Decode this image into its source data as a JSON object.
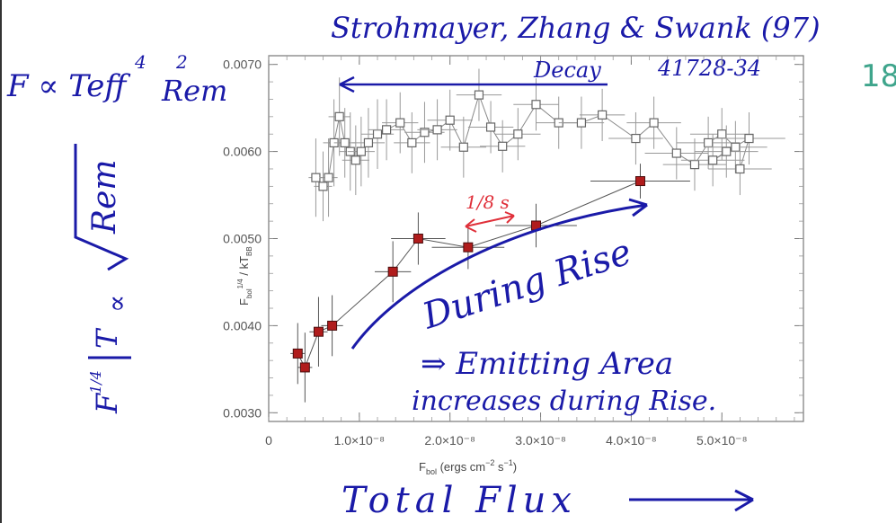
{
  "chart_data": {
    "type": "scatter",
    "xlabel": "F_bol (ergs cm^-2 s^-1)",
    "ylabel": "F_bol^1/4 / kT_BB",
    "xlim": [
      0,
      5.9e-08
    ],
    "ylim": [
      0.0029,
      0.0071
    ],
    "x_tick_labels": [
      "0",
      "1.0×10⁻⁸",
      "2.0×10⁻⁸",
      "3.0×10⁻⁸",
      "4.0×10⁻⁸",
      "5.0×10⁻⁸"
    ],
    "y_tick_labels": [
      "0.0030",
      "0.0040",
      "0.0050",
      "0.0060",
      "0.0070"
    ],
    "series": [
      {
        "name": "Decay",
        "marker": "open-square",
        "color": "#666666",
        "points": [
          {
            "x": 5.2e-09,
            "y": 0.0057,
            "xerr": 8e-10,
            "yerr": 0.00045
          },
          {
            "x": 6e-09,
            "y": 0.0056,
            "xerr": 1e-09,
            "yerr": 0.0004
          },
          {
            "x": 6.6e-09,
            "y": 0.0057,
            "xerr": 1e-09,
            "yerr": 0.00045
          },
          {
            "x": 7.2e-09,
            "y": 0.0061,
            "xerr": 1.2e-09,
            "yerr": 0.0005
          },
          {
            "x": 7.8e-09,
            "y": 0.0064,
            "xerr": 1.2e-09,
            "yerr": 0.00045
          },
          {
            "x": 8.4e-09,
            "y": 0.0061,
            "xerr": 1.2e-09,
            "yerr": 0.0004
          },
          {
            "x": 9e-09,
            "y": 0.006,
            "xerr": 1.2e-09,
            "yerr": 0.00045
          },
          {
            "x": 9.6e-09,
            "y": 0.0059,
            "xerr": 1.5e-09,
            "yerr": 0.0004
          },
          {
            "x": 1.02e-08,
            "y": 0.006,
            "xerr": 1.5e-09,
            "yerr": 0.0004
          },
          {
            "x": 1.1e-08,
            "y": 0.0061,
            "xerr": 1.8e-09,
            "yerr": 0.0004
          },
          {
            "x": 1.2e-08,
            "y": 0.0062,
            "xerr": 1.8e-09,
            "yerr": 0.0004
          },
          {
            "x": 1.3e-08,
            "y": 0.00625,
            "xerr": 2e-09,
            "yerr": 0.00035
          },
          {
            "x": 1.45e-08,
            "y": 0.00633,
            "xerr": 2e-09,
            "yerr": 0.00035
          },
          {
            "x": 1.58e-08,
            "y": 0.0061,
            "xerr": 2e-09,
            "yerr": 0.00035
          },
          {
            "x": 1.72e-08,
            "y": 0.00622,
            "xerr": 2.2e-09,
            "yerr": 0.00035
          },
          {
            "x": 1.86e-08,
            "y": 0.00625,
            "xerr": 2.2e-09,
            "yerr": 0.00035
          },
          {
            "x": 2e-08,
            "y": 0.00636,
            "xerr": 2.5e-09,
            "yerr": 0.00035
          },
          {
            "x": 2.15e-08,
            "y": 0.00605,
            "xerr": 2.5e-09,
            "yerr": 0.00035
          },
          {
            "x": 2.32e-08,
            "y": 0.00665,
            "xerr": 2.5e-09,
            "yerr": 0.0003
          },
          {
            "x": 2.45e-08,
            "y": 0.00628,
            "xerr": 2.5e-09,
            "yerr": 0.0003
          },
          {
            "x": 2.58e-08,
            "y": 0.00606,
            "xerr": 2.5e-09,
            "yerr": 0.0003
          },
          {
            "x": 2.75e-08,
            "y": 0.0062,
            "xerr": 2.5e-09,
            "yerr": 0.0003
          },
          {
            "x": 2.95e-08,
            "y": 0.00654,
            "xerr": 2.5e-09,
            "yerr": 0.0003
          },
          {
            "x": 3.2e-08,
            "y": 0.00633,
            "xerr": 2.5e-09,
            "yerr": 0.0003
          },
          {
            "x": 3.45e-08,
            "y": 0.00633,
            "xerr": 2.5e-09,
            "yerr": 0.0003
          },
          {
            "x": 3.68e-08,
            "y": 0.00642,
            "xerr": 2.5e-09,
            "yerr": 0.0003
          },
          {
            "x": 4.05e-08,
            "y": 0.00615,
            "xerr": 3e-09,
            "yerr": 0.0003
          },
          {
            "x": 4.25e-08,
            "y": 0.00633,
            "xerr": 3e-09,
            "yerr": 0.0003
          },
          {
            "x": 4.5e-08,
            "y": 0.00598,
            "xerr": 3.5e-09,
            "yerr": 0.0003
          },
          {
            "x": 4.7e-08,
            "y": 0.00585,
            "xerr": 3.5e-09,
            "yerr": 0.0003
          },
          {
            "x": 4.85e-08,
            "y": 0.0061,
            "xerr": 3.5e-09,
            "yerr": 0.0003
          },
          {
            "x": 5e-08,
            "y": 0.0062,
            "xerr": 3.5e-09,
            "yerr": 0.0003
          },
          {
            "x": 5.15e-08,
            "y": 0.00605,
            "xerr": 3.5e-09,
            "yerr": 0.0003
          },
          {
            "x": 4.9e-08,
            "y": 0.0059,
            "xerr": 3.5e-09,
            "yerr": 0.0003
          },
          {
            "x": 5.05e-08,
            "y": 0.006,
            "xerr": 3.5e-09,
            "yerr": 0.0003
          },
          {
            "x": 5.3e-08,
            "y": 0.00615,
            "xerr": 4e-09,
            "yerr": 0.0003
          },
          {
            "x": 5.2e-08,
            "y": 0.0058,
            "xerr": 3.5e-09,
            "yerr": 0.0003
          }
        ]
      },
      {
        "name": "During Rise",
        "marker": "filled-square",
        "color": "#b01c1c",
        "points": [
          {
            "x": 3.2e-09,
            "y": 0.00368,
            "xerr": 8e-10,
            "yerr": 0.00035
          },
          {
            "x": 4e-09,
            "y": 0.00352,
            "xerr": 8e-10,
            "yerr": 0.0004
          },
          {
            "x": 5.5e-09,
            "y": 0.00393,
            "xerr": 1e-09,
            "yerr": 0.0004
          },
          {
            "x": 7e-09,
            "y": 0.004,
            "xerr": 1.2e-09,
            "yerr": 0.00035
          },
          {
            "x": 1.37e-08,
            "y": 0.00462,
            "xerr": 2e-09,
            "yerr": 0.00035
          },
          {
            "x": 1.65e-08,
            "y": 0.005,
            "xerr": 3e-09,
            "yerr": 0.0003
          },
          {
            "x": 2.2e-08,
            "y": 0.0049,
            "xerr": 4e-09,
            "yerr": 0.00025
          },
          {
            "x": 2.95e-08,
            "y": 0.00515,
            "xerr": 4.5e-09,
            "yerr": 0.00025
          },
          {
            "x": 4.1e-08,
            "y": 0.00566,
            "xerr": 5.5e-09,
            "yerr": 0.0002
          }
        ]
      }
    ]
  },
  "annotations": {
    "title_note": "Strohmayer, Zhang & Swank (97)",
    "run_id": "41728-34",
    "page_no": "18",
    "decay": "Decay",
    "formula_left": "F ∝ Teff",
    "formula_teff_exp": "4",
    "formula_rem": "Rem",
    "formula_rem_exp": "2",
    "ylhs_F": "F",
    "ylhs_exp": "1/4",
    "ylhs_T": "T",
    "ylhs_prop": "∝",
    "ylhs_rem": "Rem",
    "time_note": "1/8 s",
    "during_rise": "During Rise",
    "emitting_line1": "⇒ Emitting Area",
    "emitting_line2": "increases during Rise.",
    "total_flux": "Total Flux"
  },
  "colors": {
    "ink_blue": "#1a1aa8",
    "accent_teal": "#3fa58c",
    "rise_red": "#b01c1c",
    "note_red": "#e0303a",
    "axis": "#666666"
  }
}
